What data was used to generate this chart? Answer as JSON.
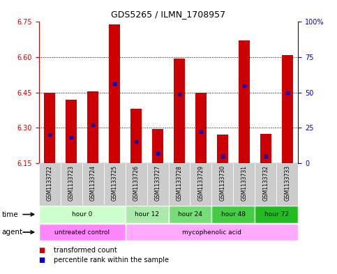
{
  "title": "GDS5265 / ILMN_1708957",
  "samples": [
    "GSM1133722",
    "GSM1133723",
    "GSM1133724",
    "GSM1133725",
    "GSM1133726",
    "GSM1133727",
    "GSM1133728",
    "GSM1133729",
    "GSM1133730",
    "GSM1133731",
    "GSM1133732",
    "GSM1133733"
  ],
  "bar_bottom": 6.15,
  "transformed_counts": [
    6.45,
    6.42,
    6.455,
    6.74,
    6.38,
    6.295,
    6.595,
    6.45,
    6.27,
    6.67,
    6.275,
    6.61
  ],
  "percentile_ranks": [
    20,
    18,
    27,
    56,
    15,
    7,
    49,
    22,
    5,
    55,
    5,
    50
  ],
  "ylim_left": [
    6.15,
    6.75
  ],
  "ylim_right": [
    0,
    100
  ],
  "yticks_left": [
    6.15,
    6.3,
    6.45,
    6.6,
    6.75
  ],
  "yticks_right": [
    0,
    25,
    50,
    75,
    100
  ],
  "ytick_labels_right": [
    "0",
    "25",
    "50",
    "75",
    "100%"
  ],
  "bar_color": "#cc0000",
  "dot_color": "#0000cc",
  "background_color": "#ffffff",
  "plot_bg": "#ffffff",
  "time_groups": [
    {
      "label": "hour 0",
      "start": 0,
      "end": 4,
      "color": "#ccffcc"
    },
    {
      "label": "hour 12",
      "start": 4,
      "end": 6,
      "color": "#aaeaaa"
    },
    {
      "label": "hour 24",
      "start": 6,
      "end": 8,
      "color": "#77dd77"
    },
    {
      "label": "hour 48",
      "start": 8,
      "end": 10,
      "color": "#44cc44"
    },
    {
      "label": "hour 72",
      "start": 10,
      "end": 12,
      "color": "#22bb22"
    }
  ],
  "agent_groups": [
    {
      "label": "untreated control",
      "start": 0,
      "end": 4,
      "color": "#ff88ff"
    },
    {
      "label": "mycophenolic acid",
      "start": 4,
      "end": 12,
      "color": "#ffaaff"
    }
  ],
  "legend_bar_color": "#cc0000",
  "legend_dot_color": "#0000cc",
  "legend_bar_label": "transformed count",
  "legend_dot_label": "percentile rank within the sample",
  "title_color": "#000000",
  "left_axis_color": "#cc0000",
  "right_axis_color": "#0000cc",
  "sample_bg_color": "#cccccc"
}
